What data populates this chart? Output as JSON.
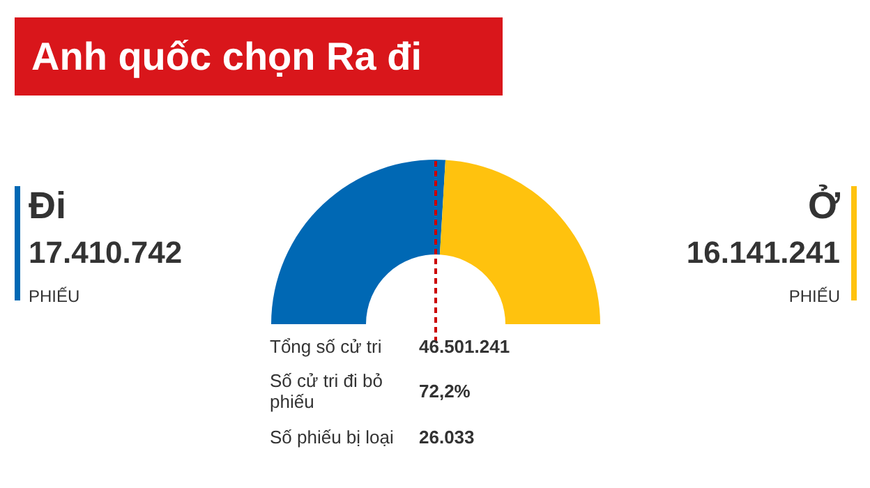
{
  "chart_data": {
    "type": "donut",
    "title": "Anh quốc chọn Ra đi",
    "categories": [
      "Đi",
      "Ở"
    ],
    "values": [
      17410742,
      16141241
    ],
    "colors": [
      "#0068b4",
      "#ffc20e"
    ],
    "value_labels": [
      "17.410.742",
      "16.141.241"
    ],
    "needle": "Đi",
    "annotations": [
      "PHIẾU",
      "PHIẾU",
      "Tổng số cử tri",
      "46.501.241",
      "Số cử tri đi bỏ phiếu",
      "72,2%",
      "Số phiếu bị loại",
      "26.033"
    ]
  }
}
